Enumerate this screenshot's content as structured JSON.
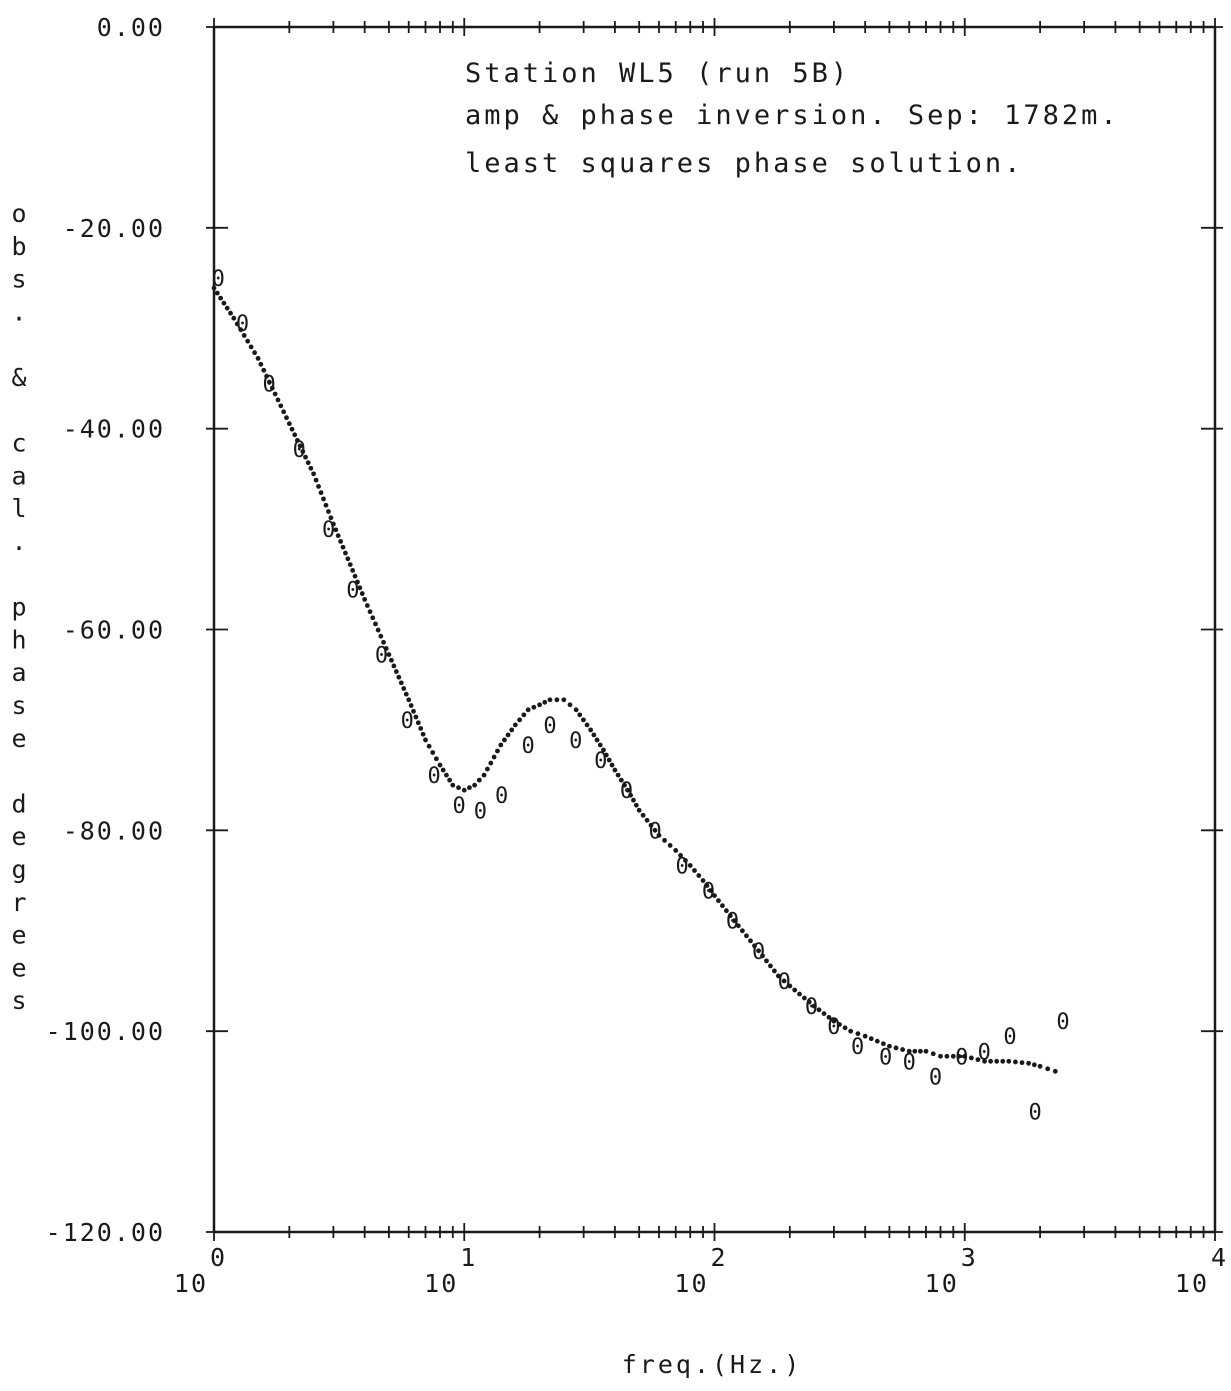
{
  "chart_data": {
    "type": "scatter",
    "title_lines": [
      "Station WL5 (run 5B)",
      "amp & phase inversion. Sep: 1782m.",
      "least squares phase solution."
    ],
    "xlabel": "freq.(Hz.)",
    "ylabel": "obs. & cal. phase degrees",
    "x_scale": "log",
    "xlim": [
      1,
      10000
    ],
    "ylim": [
      -120,
      0
    ],
    "x_ticks": [
      {
        "base": "10",
        "exp": "0",
        "value": 1
      },
      {
        "base": "10",
        "exp": "1",
        "value": 10
      },
      {
        "base": "10",
        "exp": "2",
        "value": 100
      },
      {
        "base": "10",
        "exp": "3",
        "value": 1000
      },
      {
        "base": "10",
        "exp": "4",
        "value": 10000
      }
    ],
    "y_ticks": [
      {
        "label": "0.00",
        "value": 0
      },
      {
        "label": "-20.00",
        "value": -20
      },
      {
        "label": "-40.00",
        "value": -40
      },
      {
        "label": "-60.00",
        "value": -60
      },
      {
        "label": "-80.00",
        "value": -80
      },
      {
        "label": "-100.00",
        "value": -100
      },
      {
        "label": "-120.00",
        "value": -120
      }
    ],
    "grid": false,
    "observed_marker": "0",
    "series": [
      {
        "style": "markers",
        "x": [
          1.04,
          1.3,
          1.66,
          2.19,
          2.87,
          3.59,
          4.67,
          5.92,
          7.58,
          9.54,
          11.6,
          14.1,
          18.0,
          22.0,
          27.9,
          35.1,
          44.5,
          57.9,
          74.2,
          94.6,
          118,
          150,
          190,
          244,
          300,
          373,
          483,
          600,
          764,
          973,
          1197,
          1517,
          1910,
          2470
        ],
        "y": [
          -25,
          -29.5,
          -35.5,
          -42,
          -50,
          -56,
          -62.5,
          -69,
          -74.5,
          -77.5,
          -78,
          -76.5,
          -71.5,
          -69.5,
          -71,
          -73,
          -76,
          -80,
          -83.5,
          -86,
          -89,
          -92,
          -95,
          -97.5,
          -99.5,
          -101.5,
          -102.5,
          -103,
          -104.5,
          -102.5,
          -102,
          -100.5,
          -108,
          -99
        ]
      },
      {
        "style": "dotted",
        "x": [
          1,
          1.2,
          1.5,
          2,
          2.5,
          3,
          4,
          5,
          6,
          7,
          8,
          9,
          10,
          11,
          12,
          14,
          16,
          18,
          20,
          22,
          25,
          28,
          32,
          36,
          40,
          45,
          50,
          60,
          70,
          80,
          90,
          100,
          120,
          150,
          180,
          200,
          250,
          300,
          350,
          400,
          500,
          600,
          700,
          800,
          900,
          1000,
          1200,
          1500,
          1800,
          2000,
          2300
        ],
        "y": [
          -26,
          -29,
          -33,
          -39.5,
          -44.5,
          -49.5,
          -57,
          -62.5,
          -67,
          -71,
          -73.5,
          -75.5,
          -76,
          -75.5,
          -74.5,
          -71.5,
          -69.5,
          -68,
          -67.5,
          -67,
          -67,
          -68,
          -70,
          -72,
          -74,
          -76,
          -78,
          -80.5,
          -82,
          -83.5,
          -85,
          -86.5,
          -89,
          -92,
          -94.5,
          -95.5,
          -97.5,
          -99,
          -100,
          -100.5,
          -101.5,
          -102,
          -102,
          -102.5,
          -102.5,
          -102.5,
          -103,
          -103,
          -103.2,
          -103.5,
          -104
        ]
      }
    ]
  }
}
